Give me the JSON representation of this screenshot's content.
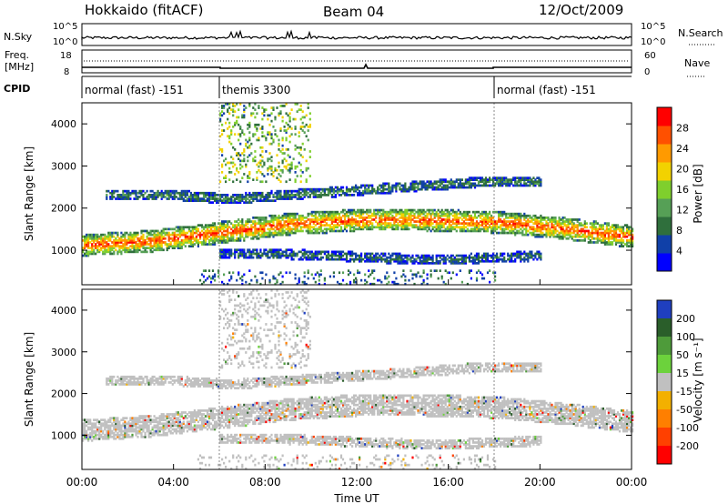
{
  "header": {
    "station": "Hokkaido (fitACF)",
    "beam": "Beam 04",
    "date": "12/Oct/2009"
  },
  "panels": {
    "nsky_label": "N.Sky",
    "nsearch_label": "N.Search",
    "nsky_ticks": [
      "10^5",
      "10^0"
    ],
    "freq_label_line1": "Freq.",
    "freq_label_line2": "[MHz]",
    "freq_ticks": [
      "18",
      "8"
    ],
    "nave_label": "Nave",
    "nave_ticks": [
      "60",
      "0"
    ],
    "cpid_label": "CPID",
    "cpid_segments": [
      {
        "label": "normal (fast) -151",
        "start_hour": 0,
        "end_hour": 6
      },
      {
        "label": "themis 3300",
        "start_hour": 6,
        "end_hour": 18
      },
      {
        "label": "normal (fast) -151",
        "start_hour": 18,
        "end_hour": 24
      }
    ]
  },
  "chart_data": [
    {
      "type": "heatmap",
      "title": "Power",
      "xlabel": "Time UT",
      "ylabel": "Slant Range [km]",
      "xlim": [
        0,
        24
      ],
      "ylim": [
        180,
        4500
      ],
      "xticks": [
        "00:00",
        "04:00",
        "08:00",
        "12:00",
        "16:00",
        "20:00",
        "00:00"
      ],
      "yticks": [
        "1000",
        "2000",
        "3000",
        "4000"
      ],
      "colorbar": {
        "label": "Power [dB]",
        "ticks": [
          "4",
          "8",
          "12",
          "16",
          "20",
          "24",
          "28"
        ],
        "range": [
          0,
          30
        ],
        "colors": [
          "#0000ff",
          "#1040a8",
          "#2f6f3c",
          "#56a056",
          "#7fcf2d",
          "#f2d200",
          "#ff9a00",
          "#ff5000",
          "#ff0000"
        ]
      },
      "bands": [
        {
          "name": "main F-region echo",
          "start_hour": 0.0,
          "end_hour": 24.0,
          "center_km": [
            1100,
            1200,
            1400,
            1600,
            1700,
            1700,
            1650,
            1500,
            1300
          ],
          "power_db": 26
        },
        {
          "name": "upper echo",
          "start_hour": 1.0,
          "end_hour": 20.0,
          "center_km": [
            2300,
            2300,
            2200,
            2300,
            2400,
            2500,
            2600,
            2600
          ],
          "power_db": 10
        },
        {
          "name": "lower echo",
          "start_hour": 6.0,
          "end_hour": 20.0,
          "center_km": [
            900,
            900,
            850,
            800,
            750,
            800,
            850
          ],
          "power_db": 8
        }
      ]
    },
    {
      "type": "heatmap",
      "title": "Velocity",
      "xlabel": "Time UT",
      "ylabel": "Slant Range [km]",
      "xlim": [
        0,
        24
      ],
      "ylim": [
        180,
        4500
      ],
      "xticks": [
        "00:00",
        "04:00",
        "08:00",
        "12:00",
        "16:00",
        "20:00",
        "00:00"
      ],
      "yticks": [
        "1000",
        "2000",
        "3000",
        "4000"
      ],
      "colorbar": {
        "label": "Velocity [m s⁻¹]",
        "ticks": [
          "200",
          "100",
          "50",
          "15",
          "-15",
          "-50",
          "-100",
          "-200"
        ],
        "range": [
          -250,
          250
        ],
        "colors": [
          "#1f3fbf",
          "#2a5e2a",
          "#4e9b3a",
          "#6cd23c",
          "#c0c0c0",
          "#f3b000",
          "#ff7f00",
          "#ff4000",
          "#ff0000"
        ]
      },
      "dominant_value_band": "-15 to 15"
    }
  ]
}
